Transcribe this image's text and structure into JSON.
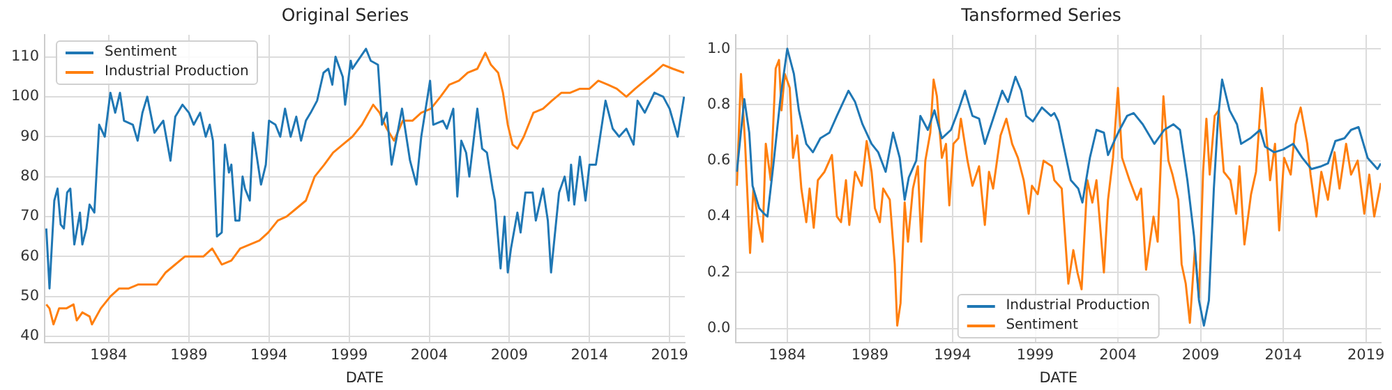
{
  "chart_data": [
    {
      "type": "line",
      "title": "Original Series",
      "xlabel": "DATE",
      "xlim": [
        1980.0,
        2019.95
      ],
      "xticks": [
        1984,
        1989,
        1994,
        1999,
        2004,
        2009,
        2014,
        2019
      ],
      "ylim": [
        38.5,
        115.5
      ],
      "yticks": [
        40,
        50,
        60,
        70,
        80,
        90,
        100,
        110
      ],
      "grid": true,
      "legend": "top left",
      "series": [
        {
          "name": "Sentiment",
          "color": "#1f77b4",
          "x": [
            1980.1,
            1980.3,
            1980.6,
            1980.8,
            1981.0,
            1981.2,
            1981.4,
            1981.6,
            1981.85,
            1982.2,
            1982.35,
            1982.6,
            1982.8,
            1983.1,
            1983.4,
            1983.75,
            1984.1,
            1984.4,
            1984.7,
            1984.95,
            1985.5,
            1985.8,
            1986.1,
            1986.4,
            1986.85,
            1987.4,
            1987.85,
            1988.15,
            1988.6,
            1989.0,
            1989.3,
            1989.7,
            1990.05,
            1990.3,
            1990.5,
            1990.75,
            1991.05,
            1991.25,
            1991.5,
            1991.65,
            1991.9,
            1992.15,
            1992.35,
            1992.5,
            1992.8,
            1993.0,
            1993.2,
            1993.5,
            1993.8,
            1994.0,
            1994.4,
            1994.7,
            1995.0,
            1995.35,
            1995.7,
            1996.0,
            1996.3,
            1996.6,
            1997.0,
            1997.4,
            1997.7,
            1997.95,
            1998.15,
            1998.6,
            1998.75,
            1999.1,
            1999.2,
            2000.05,
            2000.35,
            2000.8,
            2001.05,
            2001.35,
            2001.65,
            2002.3,
            2002.8,
            2003.2,
            2003.5,
            2004.05,
            2004.25,
            2004.85,
            2005.1,
            2005.5,
            2005.75,
            2006.0,
            2006.3,
            2006.5,
            2007.0,
            2007.3,
            2007.6,
            2007.95,
            2008.1,
            2008.45,
            2008.7,
            2008.9,
            2009.1,
            2009.5,
            2009.7,
            2010.0,
            2010.45,
            2010.65,
            2011.1,
            2011.4,
            2011.6,
            2012.1,
            2012.45,
            2012.7,
            2012.85,
            2013.05,
            2013.4,
            2013.75,
            2014.0,
            2014.4,
            2015.0,
            2015.45,
            2015.85,
            2016.3,
            2016.75,
            2017.0,
            2017.45,
            2018.05,
            2018.6,
            2019.0,
            2019.5,
            2019.9
          ],
          "values": [
            67,
            52,
            74,
            77,
            68,
            67,
            76,
            77,
            63,
            71,
            63,
            67,
            73,
            71,
            93,
            90,
            101,
            96,
            101,
            94,
            93,
            89,
            96,
            100,
            91,
            94,
            84,
            95,
            98,
            96,
            93,
            96,
            90,
            93,
            89,
            65,
            66,
            88,
            81,
            83,
            69,
            69,
            80,
            77,
            74,
            91,
            86,
            78,
            83,
            94,
            93,
            90,
            97,
            90,
            95,
            89,
            94,
            96,
            99,
            106,
            107,
            103,
            110,
            105,
            98,
            109,
            107,
            112,
            109,
            108,
            93,
            96,
            83,
            97,
            84,
            78,
            90,
            104,
            93,
            94,
            92,
            97,
            75,
            89,
            86,
            80,
            97,
            87,
            86,
            77,
            74,
            57,
            70,
            56,
            62,
            71,
            66,
            76,
            76,
            69,
            77,
            69,
            56,
            76,
            80,
            74,
            83,
            73,
            85,
            74,
            83,
            83,
            99,
            92,
            90,
            92,
            88,
            99,
            96,
            101,
            100,
            97,
            90,
            100
          ]
        },
        {
          "name": "Industrial Production",
          "color": "#ff7f0e",
          "x": [
            1980.1,
            1980.3,
            1980.55,
            1980.9,
            1981.35,
            1981.8,
            1982.0,
            1982.35,
            1982.8,
            1982.95,
            1983.5,
            1984.1,
            1984.65,
            1985.25,
            1985.85,
            1986.4,
            1987.0,
            1987.55,
            1988.15,
            1988.75,
            1989.3,
            1989.9,
            1990.45,
            1990.75,
            1991.05,
            1991.65,
            1992.2,
            1992.8,
            1993.4,
            1993.95,
            1994.55,
            1995.1,
            1995.7,
            1996.3,
            1996.85,
            1997.45,
            1998.0,
            1998.6,
            1999.2,
            1999.8,
            2000.5,
            2000.9,
            2001.35,
            2001.8,
            2002.35,
            2002.95,
            2003.5,
            2004.1,
            2004.7,
            2005.25,
            2005.85,
            2006.4,
            2007.0,
            2007.5,
            2007.85,
            2008.3,
            2008.6,
            2008.9,
            2009.2,
            2009.5,
            2009.9,
            2010.5,
            2011.1,
            2011.65,
            2012.25,
            2012.8,
            2013.4,
            2014.0,
            2014.55,
            2015.15,
            2015.7,
            2016.3,
            2016.85,
            2017.45,
            2018.05,
            2018.6,
            2019.2,
            2019.9
          ],
          "values": [
            48,
            47,
            43,
            47,
            47,
            48,
            44,
            46,
            45,
            43,
            47,
            50,
            52,
            52,
            53,
            53,
            53,
            56,
            58,
            60,
            60,
            60,
            62,
            60,
            58,
            59,
            62,
            63,
            64,
            66,
            69,
            70,
            72,
            74,
            80,
            83,
            86,
            88,
            90,
            93,
            98,
            96,
            92,
            89,
            94,
            94,
            96,
            97,
            100,
            103,
            104,
            106,
            107,
            111,
            108,
            106,
            101,
            93,
            88,
            87,
            90,
            96,
            97,
            99,
            101,
            101,
            102,
            102,
            104,
            103,
            102,
            100,
            102,
            104,
            106,
            108,
            107,
            106
          ]
        }
      ]
    },
    {
      "type": "line",
      "title": "Tansformed Series",
      "xlabel": "DATE",
      "xlim": [
        1980.9,
        2019.9
      ],
      "xticks": [
        1984,
        1989,
        1994,
        1999,
        2004,
        2009,
        2014,
        2019
      ],
      "ylim": [
        -0.05,
        1.05
      ],
      "yticks": [
        {
          "value": 0,
          "label": "0.0"
        },
        0.2,
        0.4,
        0.6,
        0.8,
        {
          "value": 1,
          "label": "1.0"
        }
      ],
      "grid": true,
      "legend": "bottom",
      "series": [
        {
          "name": "Industrial Production",
          "color": "#1f77b4",
          "x": [
            1980.95,
            1981.4,
            1981.7,
            1981.9,
            1982.3,
            1982.6,
            1982.8,
            1983.15,
            1983.6,
            1984.0,
            1984.4,
            1984.7,
            1985.15,
            1985.55,
            1986.0,
            1986.55,
            1987.0,
            1987.7,
            1988.1,
            1988.55,
            1989.1,
            1989.5,
            1989.95,
            1990.4,
            1990.8,
            1991.1,
            1991.35,
            1991.8,
            1992.05,
            1992.5,
            1992.9,
            1993.35,
            1993.9,
            1994.35,
            1994.75,
            1995.2,
            1995.6,
            1995.95,
            1996.45,
            1997.0,
            1997.35,
            1997.8,
            1998.15,
            1998.45,
            1998.85,
            1999.4,
            1999.95,
            2000.15,
            2000.4,
            2001.15,
            2001.6,
            2001.85,
            2002.3,
            2002.7,
            2003.15,
            2003.4,
            2003.85,
            2004.1,
            2004.55,
            2004.95,
            2005.5,
            2006.2,
            2006.8,
            2007.35,
            2007.75,
            2008.2,
            2008.6,
            2008.9,
            2009.2,
            2009.5,
            2009.8,
            2010.05,
            2010.3,
            2010.75,
            2011.2,
            2011.45,
            2012.0,
            2012.6,
            2012.9,
            2013.45,
            2014.0,
            2014.6,
            2015.15,
            2015.7,
            2016.3,
            2016.7,
            2017.15,
            2017.7,
            2018.1,
            2018.55,
            2019.1,
            2019.7,
            2019.9
          ],
          "values": [
            0.56,
            0.82,
            0.7,
            0.51,
            0.43,
            0.41,
            0.4,
            0.58,
            0.83,
            1.0,
            0.91,
            0.78,
            0.66,
            0.63,
            0.68,
            0.7,
            0.76,
            0.85,
            0.81,
            0.73,
            0.66,
            0.63,
            0.56,
            0.7,
            0.61,
            0.46,
            0.54,
            0.6,
            0.76,
            0.71,
            0.78,
            0.68,
            0.71,
            0.78,
            0.85,
            0.76,
            0.75,
            0.66,
            0.75,
            0.85,
            0.81,
            0.9,
            0.85,
            0.76,
            0.74,
            0.79,
            0.76,
            0.77,
            0.74,
            0.53,
            0.5,
            0.45,
            0.61,
            0.71,
            0.7,
            0.62,
            0.68,
            0.71,
            0.76,
            0.77,
            0.73,
            0.66,
            0.71,
            0.73,
            0.71,
            0.53,
            0.33,
            0.1,
            0.01,
            0.1,
            0.5,
            0.75,
            0.89,
            0.78,
            0.73,
            0.66,
            0.68,
            0.71,
            0.65,
            0.63,
            0.64,
            0.66,
            0.61,
            0.57,
            0.58,
            0.59,
            0.67,
            0.68,
            0.71,
            0.72,
            0.61,
            0.57,
            0.59
          ]
        },
        {
          "name": "Sentiment",
          "color": "#ff7f0e",
          "x": [
            1980.95,
            1981.2,
            1981.45,
            1981.75,
            1981.95,
            1982.25,
            1982.5,
            1982.7,
            1983.0,
            1983.3,
            1983.5,
            1983.65,
            1983.85,
            1984.15,
            1984.35,
            1984.6,
            1984.85,
            1985.15,
            1985.35,
            1985.6,
            1985.85,
            1986.25,
            1986.7,
            1987.0,
            1987.25,
            1987.55,
            1987.75,
            1988.1,
            1988.5,
            1988.8,
            1989.1,
            1989.3,
            1989.6,
            1989.8,
            1990.2,
            1990.5,
            1990.65,
            1990.85,
            1991.1,
            1991.3,
            1991.6,
            1991.9,
            1992.1,
            1992.35,
            1992.65,
            1992.85,
            1993.05,
            1993.35,
            1993.6,
            1993.8,
            1994.05,
            1994.35,
            1994.5,
            1994.9,
            1995.2,
            1995.6,
            1995.95,
            1996.2,
            1996.45,
            1996.9,
            1997.25,
            1997.6,
            1997.95,
            1998.3,
            1998.6,
            1998.8,
            1999.15,
            1999.5,
            2000.0,
            2000.15,
            2000.6,
            2001.0,
            2001.3,
            2001.55,
            2001.8,
            2002.15,
            2002.45,
            2002.7,
            2003.15,
            2003.4,
            2003.7,
            2004.0,
            2004.25,
            2004.7,
            2005.15,
            2005.4,
            2005.7,
            2006.15,
            2006.4,
            2006.75,
            2007.05,
            2007.3,
            2007.65,
            2007.85,
            2008.1,
            2008.35,
            2008.65,
            2008.9,
            2009.15,
            2009.35,
            2009.55,
            2009.85,
            2010.1,
            2010.4,
            2010.8,
            2011.15,
            2011.35,
            2011.65,
            2012.05,
            2012.35,
            2012.7,
            2012.9,
            2013.2,
            2013.5,
            2013.75,
            2014.05,
            2014.45,
            2014.75,
            2015.05,
            2015.45,
            2015.65,
            2016.0,
            2016.3,
            2016.7,
            2017.1,
            2017.4,
            2017.8,
            2018.1,
            2018.5,
            2018.9,
            2019.2,
            2019.5,
            2019.9
          ],
          "values": [
            0.51,
            0.91,
            0.66,
            0.27,
            0.5,
            0.38,
            0.31,
            0.66,
            0.53,
            0.93,
            0.96,
            0.78,
            0.91,
            0.86,
            0.61,
            0.69,
            0.5,
            0.38,
            0.5,
            0.36,
            0.53,
            0.56,
            0.62,
            0.4,
            0.38,
            0.53,
            0.37,
            0.56,
            0.51,
            0.67,
            0.56,
            0.43,
            0.38,
            0.5,
            0.46,
            0.23,
            0.01,
            0.09,
            0.45,
            0.31,
            0.5,
            0.58,
            0.31,
            0.6,
            0.7,
            0.89,
            0.83,
            0.61,
            0.66,
            0.44,
            0.66,
            0.68,
            0.75,
            0.6,
            0.51,
            0.58,
            0.37,
            0.56,
            0.5,
            0.69,
            0.75,
            0.66,
            0.61,
            0.53,
            0.41,
            0.51,
            0.48,
            0.6,
            0.58,
            0.53,
            0.5,
            0.16,
            0.28,
            0.2,
            0.14,
            0.53,
            0.45,
            0.53,
            0.2,
            0.46,
            0.61,
            0.86,
            0.61,
            0.53,
            0.46,
            0.5,
            0.21,
            0.4,
            0.31,
            0.83,
            0.6,
            0.55,
            0.46,
            0.23,
            0.16,
            0.02,
            0.28,
            0.11,
            0.56,
            0.75,
            0.55,
            0.76,
            0.78,
            0.56,
            0.53,
            0.41,
            0.58,
            0.3,
            0.48,
            0.56,
            0.86,
            0.75,
            0.53,
            0.66,
            0.35,
            0.61,
            0.55,
            0.73,
            0.79,
            0.66,
            0.55,
            0.4,
            0.56,
            0.46,
            0.63,
            0.5,
            0.66,
            0.55,
            0.6,
            0.41,
            0.55,
            0.4,
            0.52
          ]
        }
      ]
    }
  ]
}
